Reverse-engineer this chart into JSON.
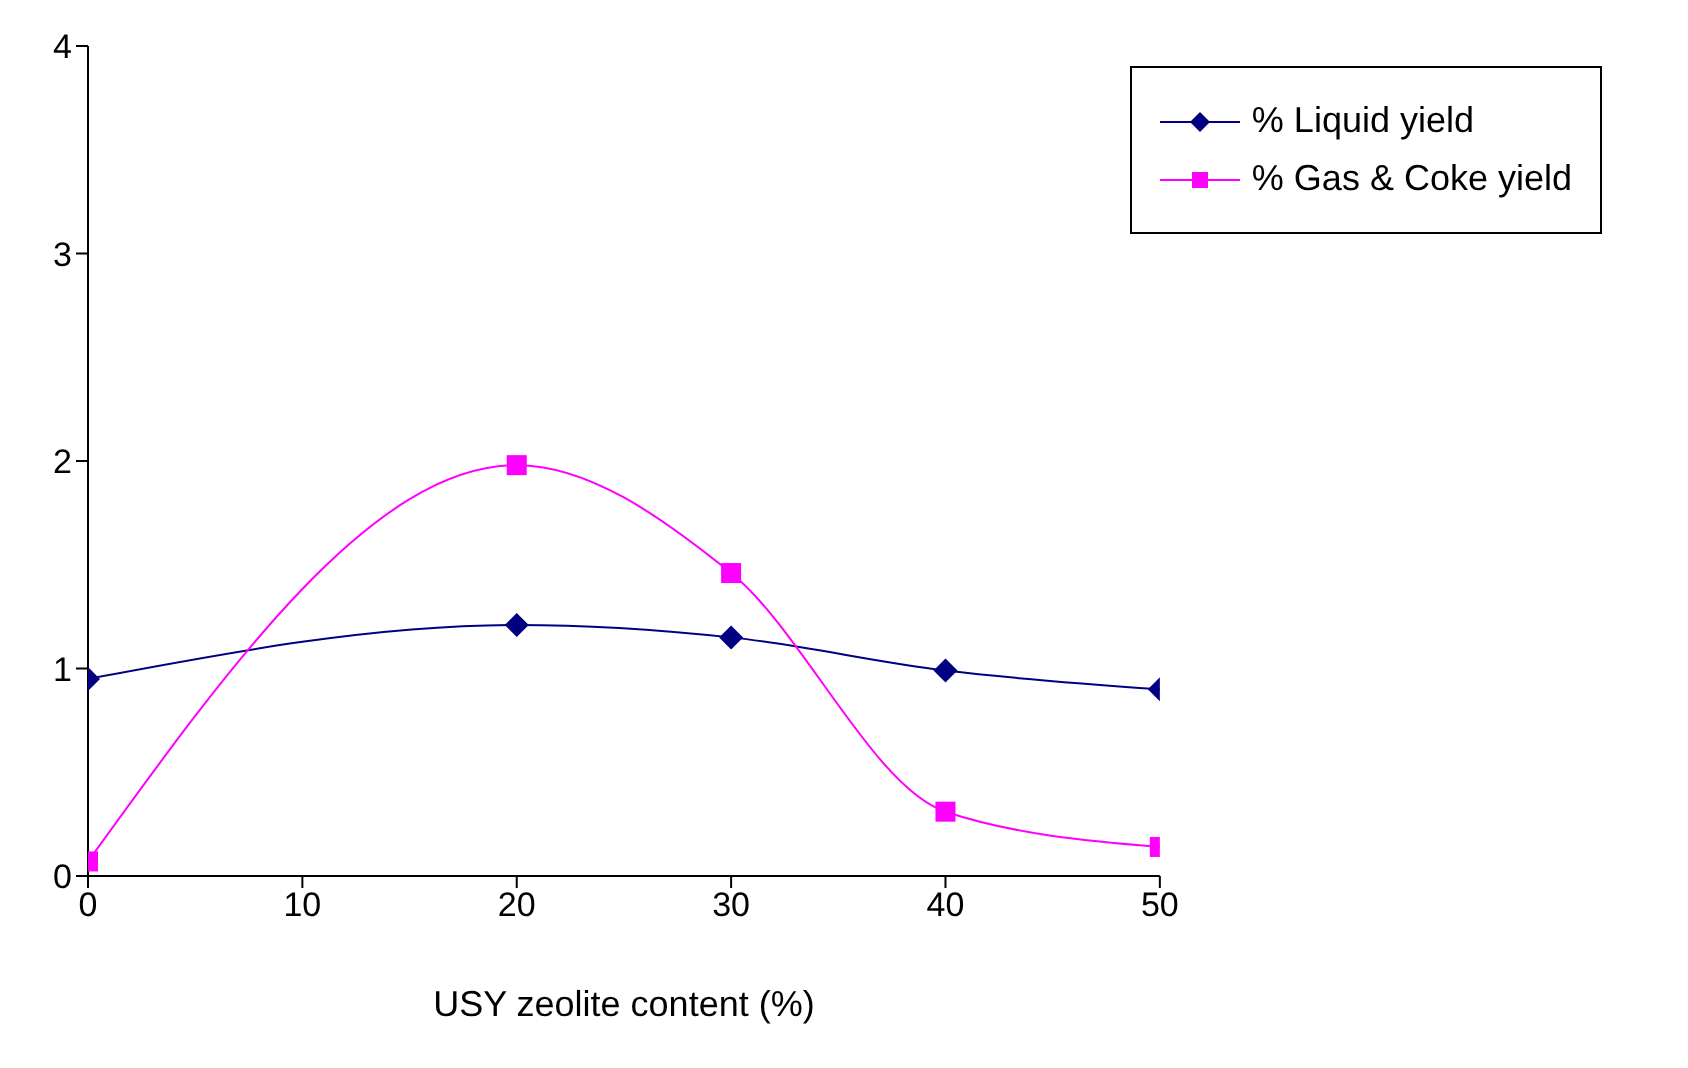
{
  "chart_data": {
    "type": "line",
    "xlabel": "USY zeolite content (%)",
    "x": [
      0,
      20,
      30,
      40,
      50
    ],
    "series": [
      {
        "name": "% Liquid yield",
        "color": "#000080",
        "marker": "diamond",
        "values": [
          0.95,
          1.21,
          1.15,
          0.99,
          0.9
        ]
      },
      {
        "name": "% Gas & Coke yield",
        "color": "#ff00ff",
        "marker": "square",
        "values": [
          0.07,
          1.98,
          1.46,
          0.31,
          0.14
        ]
      }
    ],
    "xlim": [
      0,
      50
    ],
    "xticks": [
      0,
      10,
      20,
      30,
      40,
      50
    ],
    "ylim": [
      0,
      4
    ],
    "yticks": [
      0,
      1,
      2,
      3,
      4
    ],
    "grid": false,
    "legend": "top right"
  }
}
